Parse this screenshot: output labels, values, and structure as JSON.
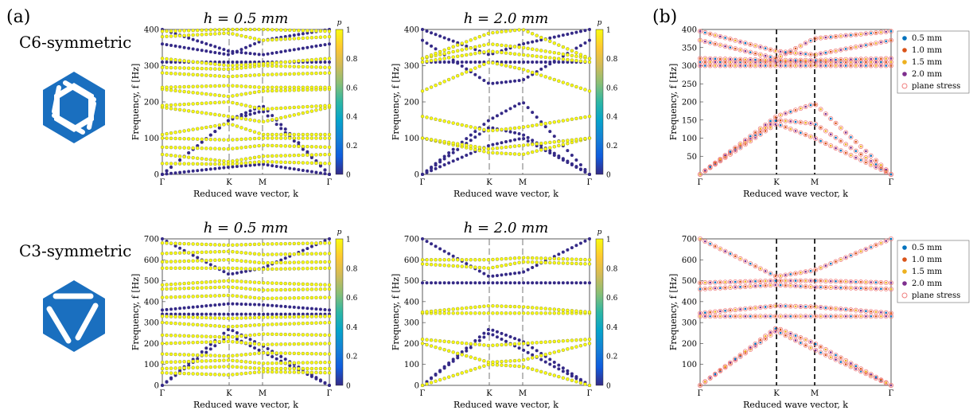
{
  "labels": {
    "panel_a": "(a)",
    "panel_b": "(b)",
    "row1": "C6-symmetric",
    "row2": "C3-symmetric"
  },
  "colors": {
    "logo_blue": "#1a6fbf",
    "parula": [
      "#352a87",
      "#0f5cdd",
      "#1481d6",
      "#06a4ca",
      "#2eb7a4",
      "#87bf77",
      "#d1bb59",
      "#fec832",
      "#f9fb0e"
    ],
    "legend": [
      "#0072bd",
      "#d95319",
      "#edb120",
      "#7e2f8e",
      "#f08080"
    ]
  },
  "icons": [
    "c6-hexagon-logo-icon",
    "c3-hexagon-logo-icon"
  ],
  "chart_data": [
    {
      "id": "c6-h05",
      "type": "scatter",
      "title": "h = 0.5 mm",
      "xlabel": "Reduced wave vector, k",
      "ylabel": "Frequency, f [Hz]",
      "xticks": [
        "Γ",
        "K",
        "M",
        "Γ"
      ],
      "ylim": [
        0,
        400
      ],
      "yticks": [
        0,
        100,
        200,
        300,
        400
      ],
      "colorbar": {
        "label": "p",
        "ticks": [
          0,
          0.2,
          0.4,
          0.6,
          0.8,
          1
        ]
      },
      "bands": [
        {
          "p": 0.05,
          "y": [
            0,
            20,
            28,
            0
          ]
        },
        {
          "p": 0.05,
          "y": [
            0,
            150,
            190,
            0
          ]
        },
        {
          "p": 0.05,
          "y": [
            0,
            150,
            175,
            0
          ]
        },
        {
          "p": 0.05,
          "y": [
            310,
            310,
            310,
            310
          ]
        },
        {
          "p": 0.05,
          "y": [
            360,
            330,
            370,
            400
          ]
        },
        {
          "p": 0.05,
          "y": [
            400,
            340,
            330,
            360
          ]
        },
        {
          "p": 0.95,
          "y": [
            30,
            28,
            35,
            30
          ]
        },
        {
          "p": 0.95,
          "y": [
            55,
            35,
            50,
            55
          ]
        },
        {
          "p": 0.95,
          "y": [
            75,
            70,
            80,
            75
          ]
        },
        {
          "p": 0.95,
          "y": [
            100,
            95,
            100,
            100
          ]
        },
        {
          "p": 0.95,
          "y": [
            110,
            140,
            110,
            110
          ]
        },
        {
          "p": 0.95,
          "y": [
            185,
            160,
            145,
            185
          ]
        },
        {
          "p": 0.95,
          "y": [
            190,
            200,
            180,
            190
          ]
        },
        {
          "p": 0.95,
          "y": [
            235,
            215,
            230,
            235
          ]
        },
        {
          "p": 0.95,
          "y": [
            240,
            245,
            240,
            240
          ]
        },
        {
          "p": 0.95,
          "y": [
            280,
            270,
            275,
            280
          ]
        },
        {
          "p": 0.95,
          "y": [
            295,
            290,
            300,
            295
          ]
        },
        {
          "p": 0.95,
          "y": [
            320,
            300,
            305,
            320
          ]
        },
        {
          "p": 0.95,
          "y": [
            380,
            390,
            370,
            380
          ]
        },
        {
          "p": 0.95,
          "y": [
            395,
            400,
            400,
            395
          ]
        }
      ]
    },
    {
      "id": "c6-h20",
      "type": "scatter",
      "title": "h = 2.0 mm",
      "xlabel": "Reduced wave vector, k",
      "ylabel": "Frequency, f [Hz]",
      "xticks": [
        "Γ",
        "K",
        "M",
        "Γ"
      ],
      "ylim": [
        0,
        400
      ],
      "yticks": [
        0,
        100,
        200,
        300,
        400
      ],
      "colorbar": {
        "label": "p",
        "ticks": [
          0,
          0.2,
          0.4,
          0.6,
          0.8,
          1
        ]
      },
      "bands": [
        {
          "p": 0.05,
          "y": [
            0,
            80,
            100,
            0
          ]
        },
        {
          "p": 0.05,
          "y": [
            0,
            130,
            110,
            0
          ]
        },
        {
          "p": 0.05,
          "y": [
            0,
            150,
            200,
            0
          ]
        },
        {
          "p": 0.05,
          "y": [
            310,
            310,
            310,
            310
          ]
        },
        {
          "p": 0.05,
          "y": [
            370,
            250,
            260,
            370
          ]
        },
        {
          "p": 0.05,
          "y": [
            400,
            330,
            360,
            400
          ]
        },
        {
          "p": 0.95,
          "y": [
            100,
            60,
            55,
            100
          ]
        },
        {
          "p": 0.95,
          "y": [
            100,
            70,
            80,
            100
          ]
        },
        {
          "p": 0.95,
          "y": [
            160,
            120,
            130,
            160
          ]
        },
        {
          "p": 0.95,
          "y": [
            230,
            310,
            290,
            230
          ]
        },
        {
          "p": 0.95,
          "y": [
            310,
            340,
            330,
            310
          ]
        },
        {
          "p": 0.95,
          "y": [
            320,
            360,
            350,
            320
          ]
        },
        {
          "p": 0.95,
          "y": [
            320,
            390,
            400,
            320
          ]
        }
      ]
    },
    {
      "id": "c6-compare",
      "type": "scatter",
      "xlabel": "Reduced wave vector, k",
      "ylabel": "Frequency, f [Hz]",
      "xticks": [
        "Γ",
        "K",
        "M",
        "Γ"
      ],
      "ylim": [
        0,
        400
      ],
      "yticks": [
        50,
        100,
        150,
        200,
        250,
        300,
        350,
        400
      ],
      "legend": [
        "0.5 mm",
        "1.0 mm",
        "1.5 mm",
        "2.0 mm",
        "plane stress"
      ],
      "bands": [
        {
          "y": [
            0,
            140,
            100,
            0
          ]
        },
        {
          "y": [
            0,
            150,
            140,
            0
          ]
        },
        {
          "y": [
            0,
            160,
            195,
            0
          ]
        },
        {
          "y": [
            300,
            300,
            300,
            300
          ]
        },
        {
          "y": [
            310,
            310,
            310,
            310
          ]
        },
        {
          "y": [
            320,
            315,
            315,
            320
          ]
        },
        {
          "y": [
            370,
            320,
            375,
            395
          ]
        },
        {
          "y": [
            395,
            340,
            330,
            370
          ]
        }
      ]
    },
    {
      "id": "c3-h05",
      "type": "scatter",
      "title": "h = 0.5 mm",
      "xlabel": "Reduced wave vector, k",
      "ylabel": "Frequency, f [Hz]",
      "xticks": [
        "Γ",
        "K",
        "M",
        "Γ"
      ],
      "ylim": [
        0,
        700
      ],
      "yticks": [
        0,
        100,
        200,
        300,
        400,
        500,
        600,
        700
      ],
      "colorbar": {
        "label": "p",
        "ticks": [
          0,
          0.2,
          0.4,
          0.6,
          0.8,
          1
        ]
      },
      "bands": [
        {
          "p": 0.05,
          "y": [
            0,
            270,
            190,
            0
          ]
        },
        {
          "p": 0.05,
          "y": [
            0,
            240,
            160,
            0
          ]
        },
        {
          "p": 0.05,
          "y": [
            340,
            340,
            340,
            340
          ]
        },
        {
          "p": 0.05,
          "y": [
            360,
            390,
            385,
            360
          ]
        },
        {
          "p": 0.05,
          "y": [
            700,
            530,
            560,
            700
          ]
        },
        {
          "p": 0.95,
          "y": [
            60,
            50,
            65,
            60
          ]
        },
        {
          "p": 0.95,
          "y": [
            80,
            90,
            80,
            80
          ]
        },
        {
          "p": 0.95,
          "y": [
            110,
            120,
            105,
            110
          ]
        },
        {
          "p": 0.95,
          "y": [
            150,
            140,
            155,
            150
          ]
        },
        {
          "p": 0.95,
          "y": [
            200,
            210,
            195,
            200
          ]
        },
        {
          "p": 0.95,
          "y": [
            240,
            230,
            245,
            240
          ]
        },
        {
          "p": 0.95,
          "y": [
            300,
            280,
            290,
            300
          ]
        },
        {
          "p": 0.95,
          "y": [
            330,
            320,
            325,
            330
          ]
        },
        {
          "p": 0.95,
          "y": [
            420,
            430,
            415,
            420
          ]
        },
        {
          "p": 0.95,
          "y": [
            460,
            470,
            455,
            460
          ]
        },
        {
          "p": 0.95,
          "y": [
            480,
            500,
            490,
            480
          ]
        },
        {
          "p": 0.95,
          "y": [
            560,
            560,
            555,
            560
          ]
        },
        {
          "p": 0.95,
          "y": [
            590,
            600,
            585,
            590
          ]
        },
        {
          "p": 0.95,
          "y": [
            630,
            640,
            625,
            630
          ]
        },
        {
          "p": 0.95,
          "y": [
            680,
            670,
            675,
            680
          ]
        }
      ]
    },
    {
      "id": "c3-h20",
      "type": "scatter",
      "title": "h = 2.0 mm",
      "xlabel": "Reduced wave vector, k",
      "ylabel": "Frequency, f [Hz]",
      "xticks": [
        "Γ",
        "K",
        "M",
        "Γ"
      ],
      "ylim": [
        0,
        700
      ],
      "yticks": [
        0,
        100,
        200,
        300,
        400,
        500,
        600,
        700
      ],
      "colorbar": {
        "label": "p",
        "ticks": [
          0,
          0.2,
          0.4,
          0.6,
          0.8,
          1
        ]
      },
      "bands": [
        {
          "p": 0.05,
          "y": [
            0,
            270,
            210,
            0
          ]
        },
        {
          "p": 0.05,
          "y": [
            0,
            250,
            170,
            0
          ]
        },
        {
          "p": 0.05,
          "y": [
            490,
            490,
            490,
            490
          ]
        },
        {
          "p": 0.05,
          "y": [
            700,
            520,
            540,
            700
          ]
        },
        {
          "p": 0.95,
          "y": [
            0,
            100,
            90,
            0
          ]
        },
        {
          "p": 0.95,
          "y": [
            200,
            110,
            120,
            200
          ]
        },
        {
          "p": 0.95,
          "y": [
            220,
            190,
            200,
            220
          ]
        },
        {
          "p": 0.95,
          "y": [
            345,
            345,
            345,
            345
          ]
        },
        {
          "p": 0.95,
          "y": [
            350,
            380,
            375,
            350
          ]
        },
        {
          "p": 0.95,
          "y": [
            580,
            560,
            590,
            580
          ]
        },
        {
          "p": 0.95,
          "y": [
            600,
            600,
            610,
            600
          ]
        }
      ]
    },
    {
      "id": "c3-compare",
      "type": "scatter",
      "xlabel": "Reduced wave vector, k",
      "ylabel": "Frequency, f [Hz]",
      "xticks": [
        "Γ",
        "K",
        "M",
        "Γ"
      ],
      "ylim": [
        0,
        700
      ],
      "yticks": [
        100,
        200,
        300,
        400,
        500,
        600,
        700
      ],
      "legend": [
        "0.5 mm",
        "1.0 mm",
        "1.5 mm",
        "2.0 mm",
        "plane stress"
      ],
      "bands": [
        {
          "y": [
            0,
            260,
            170,
            0
          ]
        },
        {
          "y": [
            0,
            275,
            200,
            0
          ]
        },
        {
          "y": [
            330,
            330,
            330,
            330
          ]
        },
        {
          "y": [
            345,
            380,
            375,
            345
          ]
        },
        {
          "y": [
            460,
            480,
            470,
            460
          ]
        },
        {
          "y": [
            490,
            500,
            500,
            490
          ]
        },
        {
          "y": [
            700,
            520,
            550,
            700
          ]
        }
      ]
    }
  ]
}
